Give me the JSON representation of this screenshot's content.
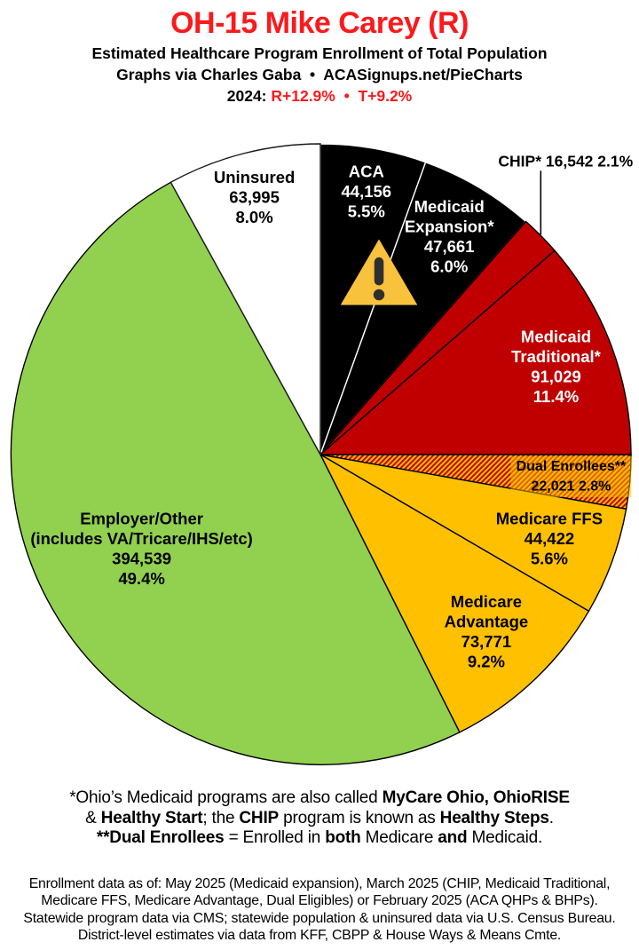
{
  "header": {
    "title": "OH-15 Mike Carey (R)",
    "subtitle": "Estimated Healthcare Program Enrollment of Total Population",
    "credit": "Graphs via Charles Gaba  •  ACASignups.net/PieCharts",
    "lean_segments": [
      {
        "t": "2024: ",
        "b": true,
        "c": "#000000"
      },
      {
        "t": "R+12.9%",
        "b": true,
        "c": "#FA1A1C"
      },
      {
        "t": "  •  ",
        "b": true,
        "c": "#FA1A1C"
      },
      {
        "t": "T+9.2%",
        "b": true,
        "c": "#FA1A1C"
      }
    ]
  },
  "colors": {
    "title_red": "#FA1A1C",
    "medicaid_red": "#C00000",
    "medicare_gold": "#FFC000",
    "employer_green": "#92D050",
    "aca_black": "#000000",
    "uninsured_white": "#FFFFFF"
  },
  "warning_icon": {
    "meaning": "warning-sign",
    "fill": "#F9C23C",
    "border": "#FFFFFF",
    "glyph_color": "#2F2F2F"
  },
  "chart_data": {
    "type": "pie",
    "title": "OH-15 Mike Carey (R) — Estimated Healthcare Program Enrollment of Total Population",
    "start_angle_deg": 0,
    "direction": "clockwise",
    "legend_position": "labels-on-slices",
    "hatch": {
      "bg": "#FFC000",
      "stripe": "#C00000"
    },
    "slices": [
      {
        "label": "ACA",
        "value": 44156,
        "value_text": "44,156",
        "pct": 5.5,
        "color": "#000000",
        "stroke": "#FFFFFF",
        "text_color": "#FFFFFF",
        "label_lines": [
          "ACA",
          "44,156",
          "5.5%"
        ],
        "label_r": 0.86,
        "label_size": 18.5
      },
      {
        "label": "Medicaid Expansion*",
        "value": 47661,
        "value_text": "47,661",
        "pct": 6.0,
        "color": "#000000",
        "stroke": "#FFFFFF",
        "text_color": "#FFFFFF",
        "label_lines": [
          "Medicaid",
          "Expansion*",
          "47,661",
          "6.0%"
        ],
        "label_r": 0.815,
        "label_size": 18.5
      },
      {
        "label": "CHIP*",
        "value": 16542,
        "value_text": "16,542",
        "pct": 2.1,
        "color": "#C00000",
        "stroke": "#000000",
        "text_color": "#000000",
        "label_lines": [
          "CHIP* 16,542 2.1%"
        ],
        "label_r": 1.0,
        "label_size": 17.5,
        "outside": true
      },
      {
        "label": "Medicaid Traditional*",
        "value": 91029,
        "value_text": "91,029",
        "pct": 11.4,
        "color": "#C00000",
        "stroke": "#000000",
        "text_color": "#FFFFFF",
        "label_lines": [
          "Medicaid",
          "Traditional*",
          "91,029",
          "11.4%"
        ],
        "label_r": 0.81,
        "label_size": 18.5
      },
      {
        "label": "Dual Enrollees**",
        "value": 22021,
        "value_text": "22,021",
        "pct": 2.8,
        "color": "hatch",
        "stroke": "#000000",
        "text_color": "#000000",
        "label_lines": [
          "Dual Enrollees**",
          "22,021 2.8%"
        ],
        "label_r": 0.81,
        "label_size": 16,
        "label_bg": "#FFC000"
      },
      {
        "label": "Medicare FFS",
        "value": 44422,
        "value_text": "44,422",
        "pct": 5.6,
        "color": "#FFC000",
        "stroke": "#000000",
        "text_color": "#000000",
        "label_lines": [
          "Medicare FFS",
          "44,422",
          "5.6%"
        ],
        "label_r": 0.785,
        "label_size": 18.5
      },
      {
        "label": "Medicare Advantage",
        "value": 73771,
        "value_text": "73,771",
        "pct": 9.2,
        "color": "#FFC000",
        "stroke": "#000000",
        "text_color": "#000000",
        "label_lines": [
          "Medicare",
          "Advantage",
          "73,771",
          "9.2%"
        ],
        "label_r": 0.78,
        "label_size": 18.5
      },
      {
        "label": "Employer/Other (includes VA/Tricare/IHS/etc)",
        "value": 394539,
        "value_text": "394,539",
        "pct": 49.4,
        "color": "#92D050",
        "stroke": "#000000",
        "text_color": "#000000",
        "label_lines": [
          "Employer/Other",
          "(includes VA/Tricare/IHS/etc)",
          "394,539",
          "49.4%"
        ],
        "label_r": 0.65,
        "label_size": 18.5
      },
      {
        "label": "Uninsured",
        "value": 63995,
        "value_text": "63,995",
        "pct": 8.0,
        "color": "#FFFFFF",
        "stroke": "#1A1A1A",
        "text_color": "#000000",
        "label_lines": [
          "Uninsured",
          "63,995",
          "8.0%"
        ],
        "label_r": 0.855,
        "label_size": 18.5
      }
    ]
  },
  "footnotes": {
    "program_notes": [
      [
        {
          "t": "*Ohio’s Medicaid programs are also called "
        },
        {
          "t": "MyCare Ohio, OhioRISE",
          "b": true
        }
      ],
      [
        {
          "t": "& "
        },
        {
          "t": "Healthy Start",
          "b": true
        },
        {
          "t": "; the "
        },
        {
          "t": "CHIP",
          "b": true
        },
        {
          "t": " program is known as "
        },
        {
          "t": "Healthy Steps",
          "b": true
        },
        {
          "t": "."
        }
      ],
      [
        {
          "t": "**Dual Enrollees",
          "b": true
        },
        {
          "t": " = Enrolled in "
        },
        {
          "t": "both",
          "b": true
        },
        {
          "t": " Medicare "
        },
        {
          "t": "and",
          "b": true
        },
        {
          "t": " Medicaid."
        }
      ]
    ],
    "source_notes": [
      "Enrollment data as of: May 2025 (Medicaid expansion), March 2025 (CHIP, Medicaid Traditional,",
      "Medicare FFS, Medicare Advantage, Dual Eligibles) or February 2025 (ACA QHPs & BHPs).",
      "Statewide program data via CMS; statewide population & uninsured data via U.S. Census Bureau.",
      "District-level estimates via data from KFF, CBPP & House Ways & Means Cmte."
    ]
  }
}
